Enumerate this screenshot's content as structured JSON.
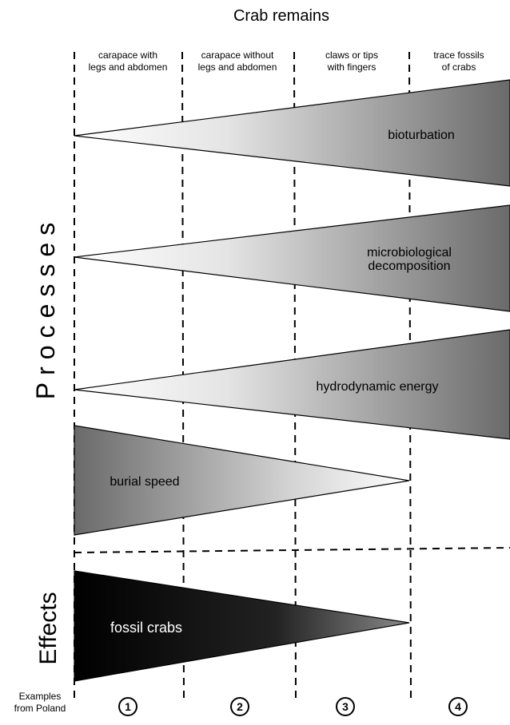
{
  "title": "Crab remains",
  "columns": [
    {
      "lines": [
        "carapace with",
        "legs and abdomen"
      ]
    },
    {
      "lines": [
        "carapace without",
        "legs and abdomen"
      ]
    },
    {
      "lines": [
        "claws or tips",
        "with fingers"
      ]
    },
    {
      "lines": [
        "trace fossils",
        "of crabs"
      ]
    }
  ],
  "side_labels": {
    "processes": "Processes",
    "effects": "Effects"
  },
  "processes": [
    {
      "lines": [
        "bioturbation"
      ]
    },
    {
      "lines": [
        "microbiological",
        "decomposition"
      ]
    },
    {
      "lines": [
        "hydrodynamic energy"
      ]
    },
    {
      "lines": [
        "burial speed"
      ]
    }
  ],
  "effects": [
    {
      "lines": [
        "fossil crabs"
      ]
    }
  ],
  "examples": {
    "lines": [
      "Examples",
      "from Poland"
    ],
    "numbers": [
      "1",
      "2",
      "3",
      "4"
    ]
  }
}
